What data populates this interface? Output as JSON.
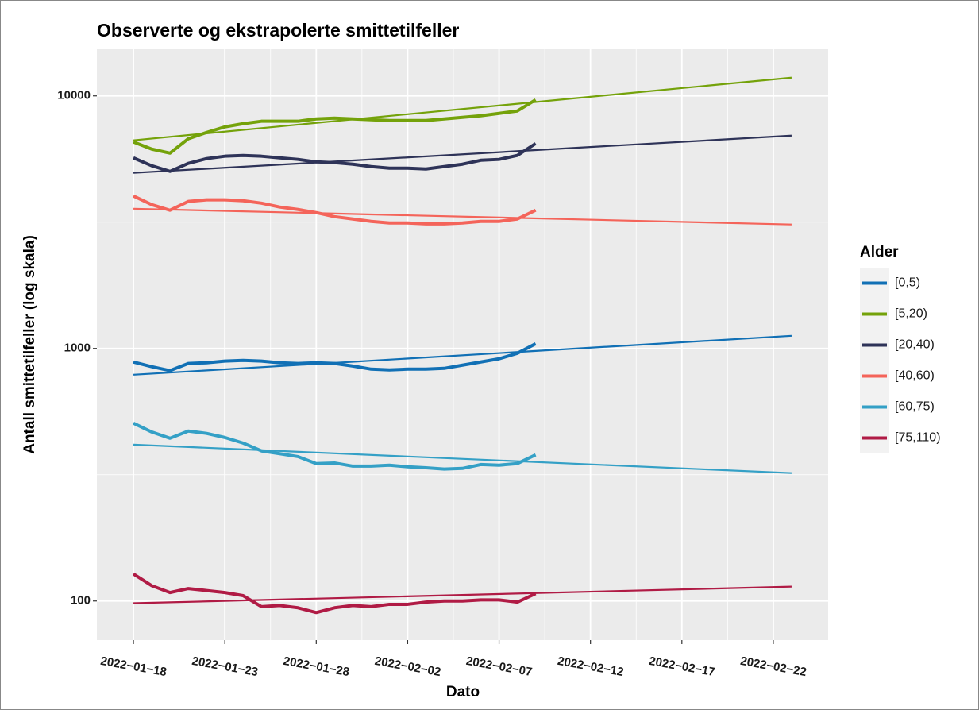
{
  "chart_data": {
    "type": "line",
    "title": "Observerte og ekstrapolerte smittetilfeller",
    "x_label": "Dato",
    "y_label": "Antall smittetilfeller (log skala)",
    "legend_title": "Alder",
    "legend_position": "right",
    "log_scale_y": true,
    "grid": true,
    "x": [
      "2022-01-18",
      "2022-01-19",
      "2022-01-20",
      "2022-01-21",
      "2022-01-22",
      "2022-01-23",
      "2022-01-24",
      "2022-01-25",
      "2022-01-26",
      "2022-01-27",
      "2022-01-28",
      "2022-01-29",
      "2022-01-30",
      "2022-01-31",
      "2022-02-01",
      "2022-02-02",
      "2022-02-03",
      "2022-02-04",
      "2022-02-05",
      "2022-02-06",
      "2022-02-07",
      "2022-02-08",
      "2022-02-09"
    ],
    "trend_x": [
      "2022-01-18",
      "2022-02-23"
    ],
    "series": [
      {
        "name": "[0,5)",
        "color": "#1170b5",
        "values": [
          884,
          847,
          817,
          872,
          878,
          891,
          897,
          891,
          878,
          872,
          878,
          872,
          852,
          828,
          822,
          828,
          828,
          834,
          859,
          884,
          910,
          957,
          1044
        ],
        "trend_values": [
          787,
          1122
        ]
      },
      {
        "name": "[5,20)",
        "color": "#74a20a",
        "values": [
          6570,
          6155,
          5935,
          6765,
          7165,
          7540,
          7760,
          7935,
          7935,
          7935,
          8105,
          8165,
          8105,
          8045,
          7990,
          7990,
          7990,
          8105,
          8225,
          8345,
          8525,
          8715,
          9645
        ],
        "trend_values": [
          6670,
          11810
        ]
      },
      {
        "name": "[20,40)",
        "color": "#2e3358",
        "values": [
          5685,
          5290,
          5025,
          5405,
          5645,
          5770,
          5810,
          5770,
          5685,
          5605,
          5480,
          5440,
          5365,
          5250,
          5175,
          5175,
          5135,
          5250,
          5365,
          5560,
          5605,
          5810,
          6475
        ],
        "trend_values": [
          4955,
          6960
        ]
      },
      {
        "name": "[40,60)",
        "color": "#f4645a",
        "values": [
          4015,
          3710,
          3525,
          3820,
          3875,
          3875,
          3845,
          3760,
          3630,
          3550,
          3450,
          3325,
          3255,
          3185,
          3140,
          3140,
          3115,
          3115,
          3140,
          3185,
          3185,
          3255,
          3525
        ],
        "trend_values": [
          3575,
          3095
        ]
      },
      {
        "name": "[60,75)",
        "color": "#34a0c6",
        "values": [
          506,
          467,
          441,
          471,
          461,
          444,
          422,
          393,
          383,
          373,
          350,
          352,
          342,
          342,
          345,
          340,
          337,
          333,
          335,
          347,
          345,
          350,
          379
        ],
        "trend_values": [
          416,
          321
        ]
      },
      {
        "name": "[75,110)",
        "color": "#b01b45",
        "values": [
          128,
          115,
          108,
          112,
          110,
          108,
          105,
          95,
          96,
          94,
          90,
          94,
          96,
          95,
          97,
          97,
          99,
          100,
          100,
          101,
          101,
          99,
          107
        ],
        "trend_values": [
          98,
          114
        ]
      }
    ],
    "xlim": [
      "2022-01-16",
      "2022-02-25"
    ],
    "xticks": [
      {
        "value": "2022-01-18",
        "label": "2022−01−18"
      },
      {
        "value": "2022-01-23",
        "label": "2022−01−23"
      },
      {
        "value": "2022-01-28",
        "label": "2022−01−28"
      },
      {
        "value": "2022-02-02",
        "label": "2022−02−02"
      },
      {
        "value": "2022-02-07",
        "label": "2022−02−07"
      },
      {
        "value": "2022-02-12",
        "label": "2022−02−12"
      },
      {
        "value": "2022-02-17",
        "label": "2022−02−17"
      },
      {
        "value": "2022-02-22",
        "label": "2022−02−22"
      }
    ],
    "ylim": [
      70,
      15300
    ],
    "yticks": [
      100,
      1000,
      10000
    ]
  }
}
